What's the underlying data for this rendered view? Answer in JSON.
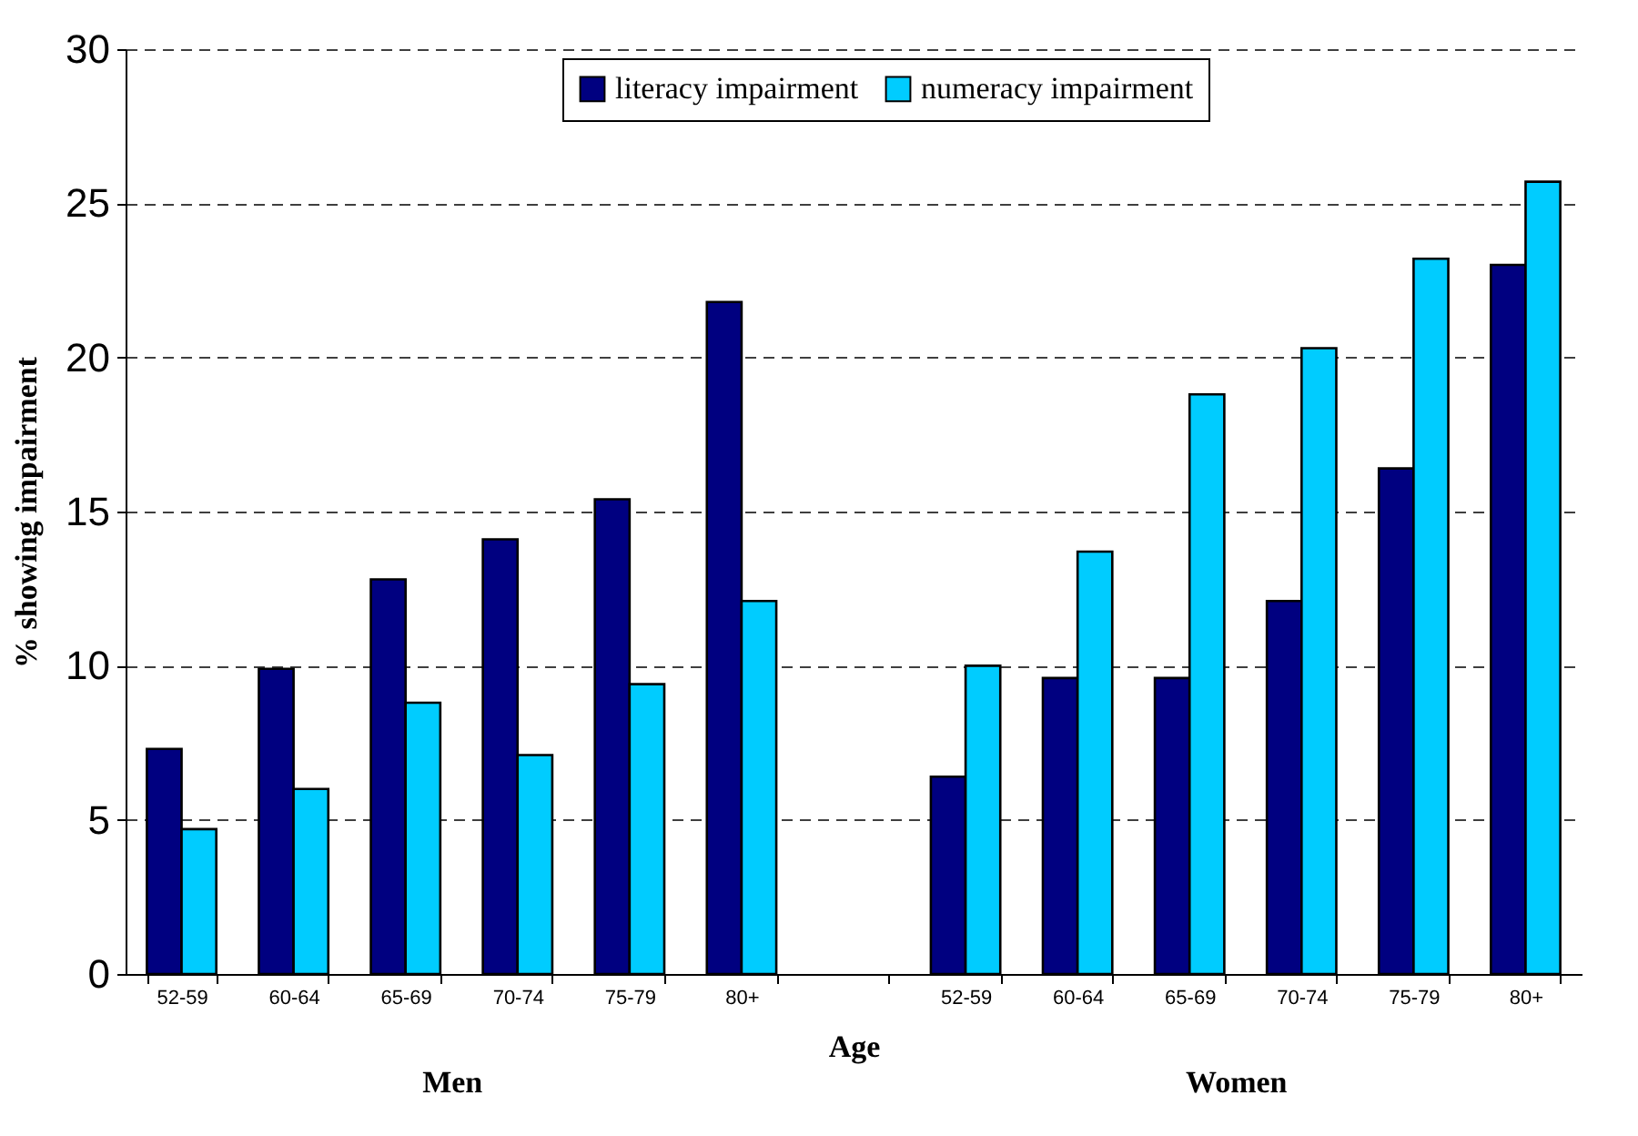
{
  "chart_data": {
    "type": "bar",
    "xlabel": "Age",
    "ylabel": "% showing impairment",
    "categories": [
      "52-59",
      "60-64",
      "65-69",
      "70-74",
      "75-79",
      "80+",
      null,
      "52-59",
      "60-64",
      "65-69",
      "70-74",
      "75-79",
      "80+"
    ],
    "series": [
      {
        "name": "literacy impairment",
        "color": "#000080",
        "values": [
          7.3,
          9.9,
          12.8,
          14.1,
          15.4,
          21.8,
          null,
          6.4,
          9.6,
          9.6,
          12.1,
          16.4,
          23.0
        ]
      },
      {
        "name": "numeracy impairment",
        "color": "#00ccff",
        "values": [
          4.7,
          6.0,
          8.8,
          7.1,
          9.4,
          12.1,
          null,
          10.0,
          13.7,
          18.8,
          20.3,
          23.2,
          25.7
        ]
      }
    ],
    "ylim": [
      0,
      30
    ],
    "yticks": [
      0,
      5,
      10,
      15,
      20,
      25,
      30
    ],
    "grid": "y",
    "legend": "top",
    "annotations": [
      "Men",
      "Women"
    ]
  }
}
